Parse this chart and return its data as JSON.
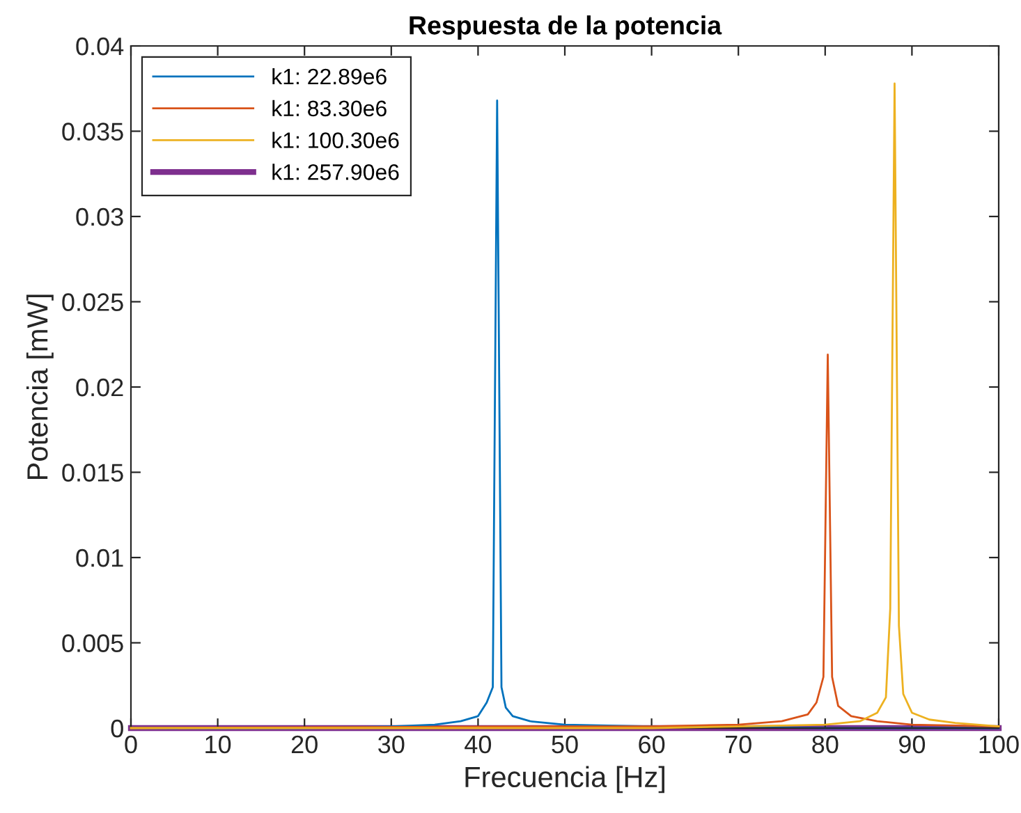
{
  "chart_data": {
    "type": "line",
    "title": "Respuesta de la potencia",
    "xlabel": "Frecuencia [Hz]",
    "ylabel": "Potencia [mW]",
    "xlim": [
      0,
      100
    ],
    "xticks": [
      0,
      10,
      20,
      30,
      40,
      50,
      60,
      70,
      80,
      90,
      100
    ],
    "ylim": [
      0,
      0.04
    ],
    "yticks": [
      0,
      0.005,
      0.01,
      0.015,
      0.02,
      0.025,
      0.03,
      0.035,
      0.04
    ],
    "grid": false,
    "legend": "top left",
    "marker": "none",
    "line_style": "solid",
    "series": [
      {
        "name": "k1: 22.89e6",
        "color": "#0072bd",
        "x": [
          0,
          20,
          30,
          35,
          38,
          40,
          41,
          41.7,
          42.2,
          42.7,
          43.2,
          44,
          46,
          50,
          60,
          80,
          100
        ],
        "values": [
          0,
          0,
          0.0001,
          0.0002,
          0.0004,
          0.0007,
          0.0015,
          0.0024,
          0.0368,
          0.0024,
          0.0012,
          0.0007,
          0.0004,
          0.0002,
          0.0001,
          0,
          0
        ]
      },
      {
        "name": "k1: 83.30e6",
        "color": "#d95319",
        "x": [
          0,
          50,
          60,
          70,
          75,
          78,
          79,
          79.8,
          80.3,
          80.8,
          81.5,
          83,
          86,
          90,
          100
        ],
        "values": [
          0,
          0.0001,
          0.0001,
          0.0002,
          0.0004,
          0.0008,
          0.0015,
          0.003,
          0.0219,
          0.003,
          0.0013,
          0.0007,
          0.0004,
          0.0002,
          0.0001
        ]
      },
      {
        "name": "k1: 100.30e6",
        "color": "#edb120",
        "x": [
          0,
          60,
          70,
          80,
          84,
          86,
          87,
          87.5,
          88,
          88.5,
          89,
          90,
          92,
          95,
          100
        ],
        "values": [
          0,
          0,
          0.0001,
          0.0002,
          0.0004,
          0.0009,
          0.0018,
          0.007,
          0.0378,
          0.006,
          0.002,
          0.0009,
          0.0005,
          0.0003,
          0.0001
        ]
      },
      {
        "name": "k1: 257.90e6",
        "color": "#7e2f8e",
        "x": [
          0,
          100
        ],
        "values": [
          0,
          0
        ]
      }
    ]
  }
}
